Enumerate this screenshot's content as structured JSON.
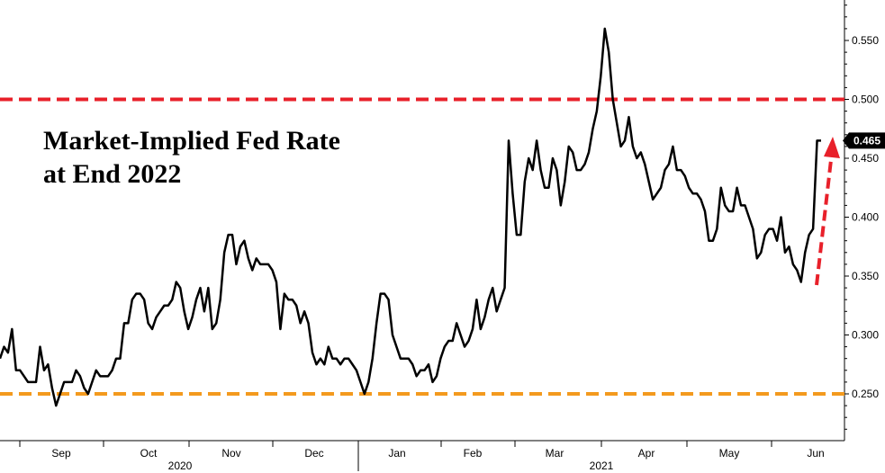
{
  "chart_data": {
    "type": "line",
    "title": "Market-Implied Fed Rate",
    "subtitle": "at End 2022",
    "xlabel": "",
    "ylabel": "",
    "ylim": [
      0.2,
      0.59
    ],
    "yticks": [
      "0.250",
      "0.300",
      "0.350",
      "0.400",
      "0.450",
      "0.500",
      "0.550"
    ],
    "month_ticks": [
      "Sep",
      "Oct",
      "Nov",
      "Dec",
      "Jan",
      "Feb",
      "Mar",
      "Apr",
      "May",
      "Jun"
    ],
    "year_labels": [
      "2020",
      "2021"
    ],
    "last_value_label": "0.465",
    "reference_lines": [
      {
        "y": 0.5,
        "color": "#e8202a",
        "style": "dashed"
      },
      {
        "y": 0.25,
        "color": "#f39a1e",
        "style": "dashed"
      }
    ],
    "arrow_color": "#e8202a",
    "line_color": "#000000",
    "grid": false,
    "series": [
      {
        "values": [
          0.28,
          0.29,
          0.285,
          0.305,
          0.27,
          0.27,
          0.265,
          0.26,
          0.26,
          0.26,
          0.29,
          0.27,
          0.275,
          0.255,
          0.24,
          0.25,
          0.26,
          0.26,
          0.26,
          0.27,
          0.265,
          0.255,
          0.25,
          0.26,
          0.27,
          0.265,
          0.265,
          0.265,
          0.27,
          0.28,
          0.28,
          0.31,
          0.31,
          0.33,
          0.335,
          0.335,
          0.33,
          0.31,
          0.305,
          0.315,
          0.32,
          0.325,
          0.325,
          0.33,
          0.345,
          0.34,
          0.32,
          0.305,
          0.315,
          0.33,
          0.34,
          0.32,
          0.34,
          0.305,
          0.31,
          0.33,
          0.37,
          0.385,
          0.385,
          0.36,
          0.375,
          0.38,
          0.365,
          0.355,
          0.365,
          0.36,
          0.36,
          0.36,
          0.355,
          0.345,
          0.305,
          0.335,
          0.33,
          0.33,
          0.325,
          0.31,
          0.32,
          0.31,
          0.285,
          0.275,
          0.28,
          0.275,
          0.29,
          0.28,
          0.28,
          0.275,
          0.28,
          0.28,
          0.275,
          0.27,
          0.26,
          0.25,
          0.26,
          0.28,
          0.31,
          0.335,
          0.335,
          0.33,
          0.3,
          0.29,
          0.28,
          0.28,
          0.28,
          0.275,
          0.265,
          0.27,
          0.27,
          0.275,
          0.26,
          0.265,
          0.28,
          0.29,
          0.295,
          0.295,
          0.31,
          0.3,
          0.29,
          0.295,
          0.305,
          0.33,
          0.305,
          0.315,
          0.33,
          0.34,
          0.32,
          0.33,
          0.34,
          0.465,
          0.42,
          0.385,
          0.385,
          0.43,
          0.45,
          0.44,
          0.465,
          0.44,
          0.425,
          0.425,
          0.45,
          0.44,
          0.41,
          0.43,
          0.46,
          0.455,
          0.44,
          0.44,
          0.445,
          0.455,
          0.475,
          0.49,
          0.52,
          0.56,
          0.54,
          0.5,
          0.48,
          0.46,
          0.465,
          0.485,
          0.46,
          0.45,
          0.455,
          0.445,
          0.43,
          0.415,
          0.42,
          0.425,
          0.44,
          0.445,
          0.46,
          0.44,
          0.44,
          0.435,
          0.425,
          0.42,
          0.42,
          0.415,
          0.405,
          0.38,
          0.38,
          0.39,
          0.425,
          0.41,
          0.405,
          0.405,
          0.425,
          0.41,
          0.41,
          0.4,
          0.39,
          0.365,
          0.37,
          0.385,
          0.39,
          0.39,
          0.38,
          0.4,
          0.37,
          0.375,
          0.36,
          0.355,
          0.345,
          0.37,
          0.385,
          0.39,
          0.465,
          0.465
        ]
      }
    ]
  }
}
